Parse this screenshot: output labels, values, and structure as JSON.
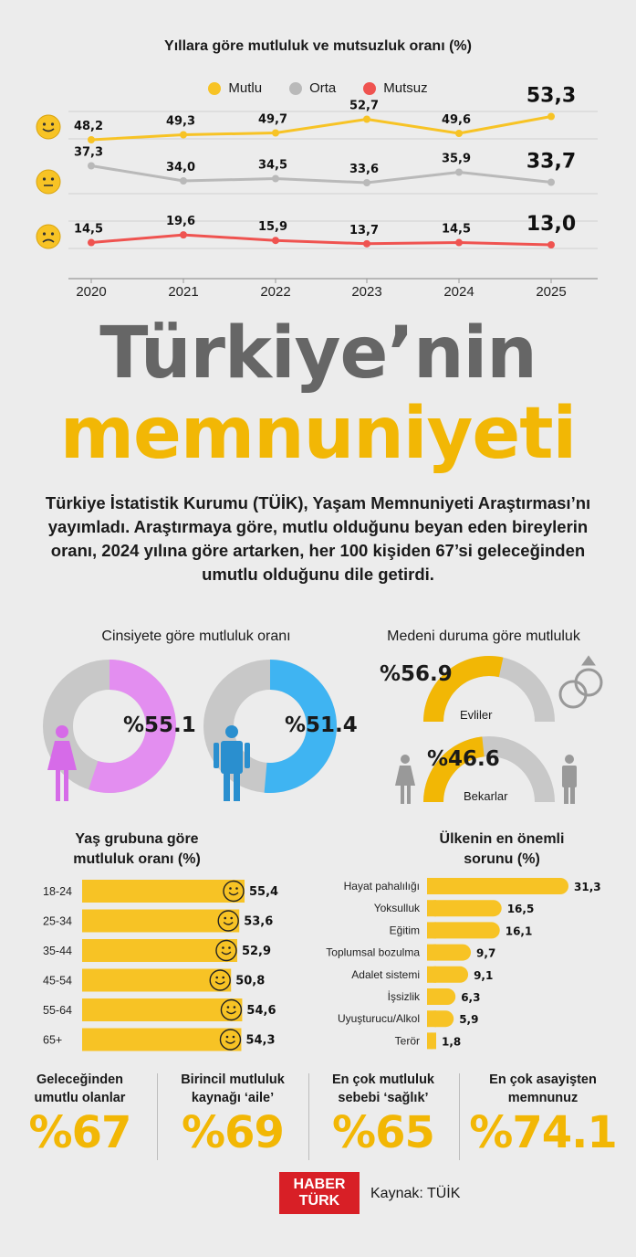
{
  "chart_data": [
    {
      "type": "line",
      "title": "Yıllara göre mutluluk ve mutsuzluk oranı (%)",
      "x": [
        "2020",
        "2021",
        "2022",
        "2023",
        "2024",
        "2025"
      ],
      "series": [
        {
          "name": "Mutlu",
          "color": "#f7c325",
          "values": [
            48.2,
            49.3,
            49.7,
            52.7,
            49.6,
            53.3
          ],
          "labels": [
            "48,2",
            "49,3",
            "49,7",
            "52,7",
            "49,6",
            "53,3"
          ]
        },
        {
          "name": "Orta",
          "color": "#b9b9b9",
          "values": [
            37.3,
            34.0,
            34.5,
            33.6,
            35.9,
            33.7
          ],
          "labels": [
            "37,3",
            "34,0",
            "34,5",
            "33,6",
            "35,9",
            "33,7"
          ]
        },
        {
          "name": "Mutsuz",
          "color": "#ef5350",
          "values": [
            14.5,
            19.6,
            15.9,
            13.7,
            14.5,
            13.0
          ],
          "labels": [
            "14,5",
            "19,6",
            "15,9",
            "13,7",
            "14,5",
            "13,0"
          ]
        }
      ],
      "legend_position": "top-center",
      "grid": true
    },
    {
      "type": "pie",
      "title": "Cinsiyete göre mutluluk oranı",
      "series": [
        {
          "name": "Kadın",
          "value": 55.1,
          "label": "%55.1",
          "color": "#e38ef0"
        },
        {
          "name": "Erkek",
          "value": 51.4,
          "label": "%51.4",
          "color": "#3fb4f2"
        }
      ]
    },
    {
      "type": "pie",
      "title": "Medeni duruma göre mutluluk",
      "series": [
        {
          "name": "Evliler",
          "value": 56.9,
          "label": "%56.9",
          "color": "#f2b705"
        },
        {
          "name": "Bekarlar",
          "value": 46.6,
          "label": "%46.6",
          "color": "#f2b705"
        }
      ]
    },
    {
      "type": "bar",
      "title": "Yaş grubuna göre mutluluk oranı (%)",
      "categories": [
        "18-24",
        "25-34",
        "35-44",
        "45-54",
        "55-64",
        "65+"
      ],
      "values": [
        55.4,
        53.6,
        52.9,
        50.8,
        54.6,
        54.3
      ],
      "labels": [
        "55,4",
        "53,6",
        "52,9",
        "50,8",
        "54,6",
        "54,3"
      ]
    },
    {
      "type": "bar",
      "title": "Ülkenin en önemli sorunu (%)",
      "categories": [
        "Hayat pahalılığı",
        "Yoksulluk",
        "Eğitim",
        "Toplumsal bozulma",
        "Adalet sistemi",
        "İşsizlik",
        "Uyuşturucu/Alkol",
        "Terör"
      ],
      "values": [
        31.3,
        16.5,
        16.1,
        9.7,
        9.1,
        6.3,
        5.9,
        1.8
      ],
      "labels": [
        "31,3",
        "16,5",
        "16,1",
        "9,7",
        "9,1",
        "6,3",
        "5,9",
        "1,8"
      ]
    }
  ],
  "header": {
    "title_line1": "Türkiye’nin",
    "title_line2": "memnuniyeti"
  },
  "intro": "Türkiye İstatistik Kurumu (TÜİK), Yaşam Memnuniyeti Araştırması’nı yayımladı. Araştırmaya göre, mutlu olduğunu beyan eden bireylerin oranı, 2024 yılına göre artarken, her 100 kişiden 67’si geleceğinden umutlu olduğunu dile getirdi.",
  "stats": [
    {
      "title": "Geleceğinden umutlu olanlar",
      "value": "%67"
    },
    {
      "title": "Birincil mutluluk kaynağı ‘aile’",
      "value": "%69"
    },
    {
      "title": "En çok mutluluk sebebi ‘sağlık’",
      "value": "%65"
    },
    {
      "title": "En çok asayişten memnunuz",
      "value": "%74.1"
    }
  ],
  "footer": {
    "logo_line1": "HABER",
    "logo_line2": "TÜRK",
    "source": "Kaynak: TÜİK"
  },
  "colors": {
    "accent": "#f2b705",
    "gray_title": "#666666",
    "brand_red": "#d81f26"
  }
}
